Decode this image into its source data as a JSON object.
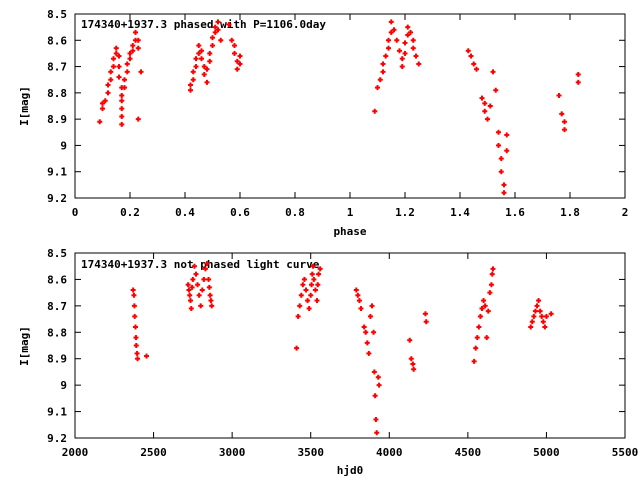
{
  "chart_data": [
    {
      "type": "scatter",
      "title": "174340+1937.3 phased with P=1106.0day",
      "xlabel": "phase",
      "ylabel": "I[mag]",
      "xlim": [
        0,
        2
      ],
      "ylim": [
        8.5,
        9.2
      ],
      "y_inverted": true,
      "grid": false,
      "marker_color": "#ff0000",
      "marker": "cross",
      "xticks": [
        "0",
        "0.2",
        "0.4",
        "0.6",
        "0.8",
        "1",
        "1.2",
        "1.4",
        "1.6",
        "1.8",
        "2"
      ],
      "yticks": [
        "8.5",
        "8.6",
        "8.7",
        "8.8",
        "8.9",
        "9",
        "9.1",
        "9.2"
      ],
      "points": [
        [
          0.09,
          8.91
        ],
        [
          0.1,
          8.86
        ],
        [
          0.1,
          8.84
        ],
        [
          0.11,
          8.83
        ],
        [
          0.12,
          8.8
        ],
        [
          0.12,
          8.77
        ],
        [
          0.13,
          8.75
        ],
        [
          0.13,
          8.72
        ],
        [
          0.14,
          8.7
        ],
        [
          0.14,
          8.67
        ],
        [
          0.15,
          8.65
        ],
        [
          0.15,
          8.63
        ],
        [
          0.16,
          8.66
        ],
        [
          0.16,
          8.7
        ],
        [
          0.16,
          8.74
        ],
        [
          0.17,
          8.78
        ],
        [
          0.17,
          8.81
        ],
        [
          0.17,
          8.83
        ],
        [
          0.17,
          8.86
        ],
        [
          0.17,
          8.89
        ],
        [
          0.17,
          8.92
        ],
        [
          0.18,
          8.78
        ],
        [
          0.18,
          8.75
        ],
        [
          0.19,
          8.72
        ],
        [
          0.19,
          8.69
        ],
        [
          0.2,
          8.67
        ],
        [
          0.2,
          8.65
        ],
        [
          0.21,
          8.64
        ],
        [
          0.21,
          8.62
        ],
        [
          0.22,
          8.6
        ],
        [
          0.22,
          8.57
        ],
        [
          0.23,
          8.6
        ],
        [
          0.23,
          8.63
        ],
        [
          0.23,
          8.9
        ],
        [
          0.24,
          8.72
        ],
        [
          0.42,
          8.79
        ],
        [
          0.42,
          8.77
        ],
        [
          0.43,
          8.75
        ],
        [
          0.43,
          8.72
        ],
        [
          0.44,
          8.7
        ],
        [
          0.44,
          8.67
        ],
        [
          0.45,
          8.65
        ],
        [
          0.45,
          8.62
        ],
        [
          0.46,
          8.64
        ],
        [
          0.46,
          8.67
        ],
        [
          0.47,
          8.7
        ],
        [
          0.47,
          8.73
        ],
        [
          0.48,
          8.76
        ],
        [
          0.48,
          8.71
        ],
        [
          0.49,
          8.68
        ],
        [
          0.49,
          8.65
        ],
        [
          0.5,
          8.62
        ],
        [
          0.5,
          8.59
        ],
        [
          0.51,
          8.57
        ],
        [
          0.51,
          8.55
        ],
        [
          0.52,
          8.53
        ],
        [
          0.52,
          8.56
        ],
        [
          0.53,
          8.6
        ],
        [
          0.56,
          8.54
        ],
        [
          0.57,
          8.6
        ],
        [
          0.58,
          8.62
        ],
        [
          0.58,
          8.65
        ],
        [
          0.59,
          8.68
        ],
        [
          0.59,
          8.71
        ],
        [
          0.6,
          8.69
        ],
        [
          0.6,
          8.66
        ],
        [
          1.09,
          8.87
        ],
        [
          1.1,
          8.78
        ],
        [
          1.11,
          8.75
        ],
        [
          1.12,
          8.72
        ],
        [
          1.12,
          8.69
        ],
        [
          1.13,
          8.66
        ],
        [
          1.14,
          8.63
        ],
        [
          1.14,
          8.6
        ],
        [
          1.15,
          8.57
        ],
        [
          1.15,
          8.53
        ],
        [
          1.16,
          8.56
        ],
        [
          1.17,
          8.6
        ],
        [
          1.18,
          8.64
        ],
        [
          1.19,
          8.67
        ],
        [
          1.19,
          8.7
        ],
        [
          1.2,
          8.65
        ],
        [
          1.2,
          8.61
        ],
        [
          1.21,
          8.58
        ],
        [
          1.21,
          8.55
        ],
        [
          1.22,
          8.57
        ],
        [
          1.23,
          8.6
        ],
        [
          1.23,
          8.63
        ],
        [
          1.24,
          8.66
        ],
        [
          1.25,
          8.69
        ],
        [
          1.43,
          8.64
        ],
        [
          1.44,
          8.66
        ],
        [
          1.45,
          8.69
        ],
        [
          1.46,
          8.71
        ],
        [
          1.48,
          8.82
        ],
        [
          1.49,
          8.84
        ],
        [
          1.49,
          8.87
        ],
        [
          1.5,
          8.9
        ],
        [
          1.51,
          8.85
        ],
        [
          1.52,
          8.72
        ],
        [
          1.53,
          8.79
        ],
        [
          1.54,
          8.95
        ],
        [
          1.54,
          9.0
        ],
        [
          1.55,
          9.05
        ],
        [
          1.55,
          9.1
        ],
        [
          1.56,
          9.15
        ],
        [
          1.56,
          9.18
        ],
        [
          1.57,
          9.02
        ],
        [
          1.57,
          8.96
        ],
        [
          1.76,
          8.81
        ],
        [
          1.77,
          8.88
        ],
        [
          1.78,
          8.91
        ],
        [
          1.78,
          8.94
        ],
        [
          1.83,
          8.73
        ],
        [
          1.83,
          8.76
        ]
      ]
    },
    {
      "type": "scatter",
      "title": "174340+1937.3 not phased light curve",
      "xlabel": "hjd0",
      "ylabel": "I[mag]",
      "xlim": [
        2000,
        5500
      ],
      "ylim": [
        8.5,
        9.2
      ],
      "y_inverted": true,
      "grid": false,
      "marker_color": "#ff0000",
      "marker": "cross",
      "xticks": [
        "2000",
        "2500",
        "3000",
        "3500",
        "4000",
        "4500",
        "5000",
        "5500"
      ],
      "yticks": [
        "8.5",
        "8.6",
        "8.7",
        "8.8",
        "8.9",
        "9",
        "9.1",
        "9.2"
      ],
      "points": [
        [
          2370,
          8.64
        ],
        [
          2375,
          8.66
        ],
        [
          2378,
          8.7
        ],
        [
          2380,
          8.74
        ],
        [
          2385,
          8.78
        ],
        [
          2388,
          8.82
        ],
        [
          2390,
          8.85
        ],
        [
          2395,
          8.88
        ],
        [
          2398,
          8.9
        ],
        [
          2455,
          8.89
        ],
        [
          2720,
          8.62
        ],
        [
          2725,
          8.64
        ],
        [
          2730,
          8.66
        ],
        [
          2735,
          8.68
        ],
        [
          2740,
          8.71
        ],
        [
          2745,
          8.63
        ],
        [
          2750,
          8.6
        ],
        [
          2760,
          8.55
        ],
        [
          2770,
          8.58
        ],
        [
          2780,
          8.62
        ],
        [
          2790,
          8.66
        ],
        [
          2800,
          8.7
        ],
        [
          2810,
          8.64
        ],
        [
          2820,
          8.6
        ],
        [
          2830,
          8.56
        ],
        [
          2840,
          8.54
        ],
        [
          2850,
          8.6
        ],
        [
          2855,
          8.63
        ],
        [
          2860,
          8.66
        ],
        [
          2865,
          8.68
        ],
        [
          2870,
          8.7
        ],
        [
          3410,
          8.86
        ],
        [
          3420,
          8.74
        ],
        [
          3430,
          8.7
        ],
        [
          3440,
          8.66
        ],
        [
          3450,
          8.62
        ],
        [
          3460,
          8.6
        ],
        [
          3470,
          8.64
        ],
        [
          3480,
          8.68
        ],
        [
          3490,
          8.71
        ],
        [
          3500,
          8.66
        ],
        [
          3505,
          8.62
        ],
        [
          3510,
          8.58
        ],
        [
          3515,
          8.55
        ],
        [
          3520,
          8.6
        ],
        [
          3530,
          8.64
        ],
        [
          3540,
          8.68
        ],
        [
          3545,
          8.62
        ],
        [
          3550,
          8.58
        ],
        [
          3560,
          8.56
        ],
        [
          3790,
          8.64
        ],
        [
          3800,
          8.66
        ],
        [
          3810,
          8.68
        ],
        [
          3820,
          8.71
        ],
        [
          3840,
          8.78
        ],
        [
          3850,
          8.8
        ],
        [
          3860,
          8.84
        ],
        [
          3870,
          8.88
        ],
        [
          3880,
          8.74
        ],
        [
          3890,
          8.7
        ],
        [
          3900,
          8.8
        ],
        [
          3905,
          8.95
        ],
        [
          3910,
          9.04
        ],
        [
          3915,
          9.13
        ],
        [
          3920,
          9.18
        ],
        [
          3930,
          8.97
        ],
        [
          3935,
          9.0
        ],
        [
          4130,
          8.83
        ],
        [
          4140,
          8.9
        ],
        [
          4150,
          8.92
        ],
        [
          4155,
          8.94
        ],
        [
          4230,
          8.73
        ],
        [
          4235,
          8.76
        ],
        [
          4540,
          8.91
        ],
        [
          4550,
          8.86
        ],
        [
          4560,
          8.82
        ],
        [
          4570,
          8.78
        ],
        [
          4580,
          8.74
        ],
        [
          4590,
          8.71
        ],
        [
          4600,
          8.68
        ],
        [
          4610,
          8.7
        ],
        [
          4620,
          8.82
        ],
        [
          4630,
          8.72
        ],
        [
          4640,
          8.65
        ],
        [
          4650,
          8.62
        ],
        [
          4655,
          8.58
        ],
        [
          4660,
          8.56
        ],
        [
          4900,
          8.78
        ],
        [
          4910,
          8.76
        ],
        [
          4920,
          8.74
        ],
        [
          4930,
          8.72
        ],
        [
          4940,
          8.7
        ],
        [
          4950,
          8.68
        ],
        [
          4960,
          8.72
        ],
        [
          4970,
          8.74
        ],
        [
          4980,
          8.76
        ],
        [
          4990,
          8.78
        ],
        [
          5000,
          8.74
        ],
        [
          5030,
          8.73
        ]
      ]
    }
  ]
}
